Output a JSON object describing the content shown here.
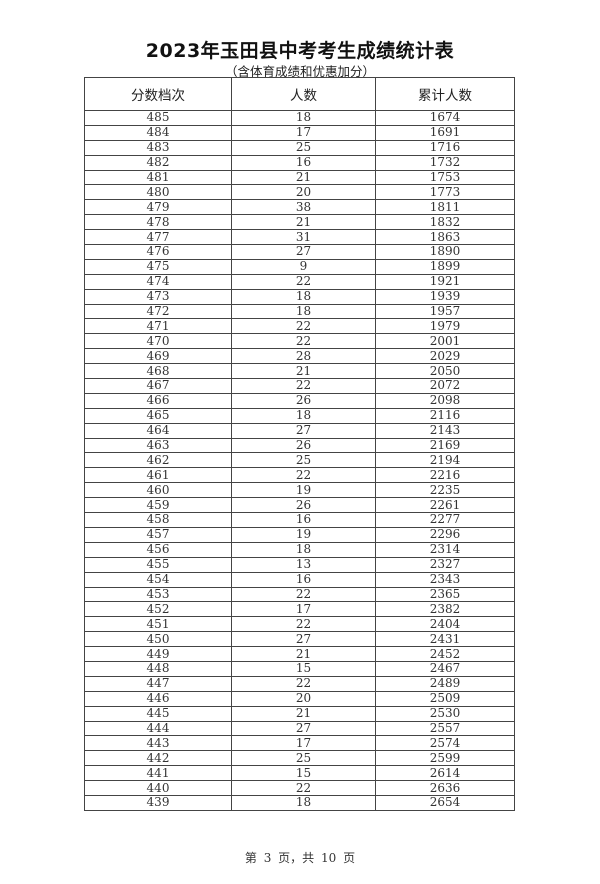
{
  "document": {
    "title": "2023年玉田县中考考生成绩统计表",
    "subtitle": "（含体育成绩和优惠加分）",
    "footer": "第 3 页，共 10 页"
  },
  "table": {
    "headers": [
      "分数档次",
      "人数",
      "累计人数"
    ],
    "rows": [
      [
        "485",
        "18",
        "1674"
      ],
      [
        "484",
        "17",
        "1691"
      ],
      [
        "483",
        "25",
        "1716"
      ],
      [
        "482",
        "16",
        "1732"
      ],
      [
        "481",
        "21",
        "1753"
      ],
      [
        "480",
        "20",
        "1773"
      ],
      [
        "479",
        "38",
        "1811"
      ],
      [
        "478",
        "21",
        "1832"
      ],
      [
        "477",
        "31",
        "1863"
      ],
      [
        "476",
        "27",
        "1890"
      ],
      [
        "475",
        "9",
        "1899"
      ],
      [
        "474",
        "22",
        "1921"
      ],
      [
        "473",
        "18",
        "1939"
      ],
      [
        "472",
        "18",
        "1957"
      ],
      [
        "471",
        "22",
        "1979"
      ],
      [
        "470",
        "22",
        "2001"
      ],
      [
        "469",
        "28",
        "2029"
      ],
      [
        "468",
        "21",
        "2050"
      ],
      [
        "467",
        "22",
        "2072"
      ],
      [
        "466",
        "26",
        "2098"
      ],
      [
        "465",
        "18",
        "2116"
      ],
      [
        "464",
        "27",
        "2143"
      ],
      [
        "463",
        "26",
        "2169"
      ],
      [
        "462",
        "25",
        "2194"
      ],
      [
        "461",
        "22",
        "2216"
      ],
      [
        "460",
        "19",
        "2235"
      ],
      [
        "459",
        "26",
        "2261"
      ],
      [
        "458",
        "16",
        "2277"
      ],
      [
        "457",
        "19",
        "2296"
      ],
      [
        "456",
        "18",
        "2314"
      ],
      [
        "455",
        "13",
        "2327"
      ],
      [
        "454",
        "16",
        "2343"
      ],
      [
        "453",
        "22",
        "2365"
      ],
      [
        "452",
        "17",
        "2382"
      ],
      [
        "451",
        "22",
        "2404"
      ],
      [
        "450",
        "27",
        "2431"
      ],
      [
        "449",
        "21",
        "2452"
      ],
      [
        "448",
        "15",
        "2467"
      ],
      [
        "447",
        "22",
        "2489"
      ],
      [
        "446",
        "20",
        "2509"
      ],
      [
        "445",
        "21",
        "2530"
      ],
      [
        "444",
        "27",
        "2557"
      ],
      [
        "443",
        "17",
        "2574"
      ],
      [
        "442",
        "25",
        "2599"
      ],
      [
        "441",
        "15",
        "2614"
      ],
      [
        "440",
        "22",
        "2636"
      ],
      [
        "439",
        "18",
        "2654"
      ]
    ]
  }
}
